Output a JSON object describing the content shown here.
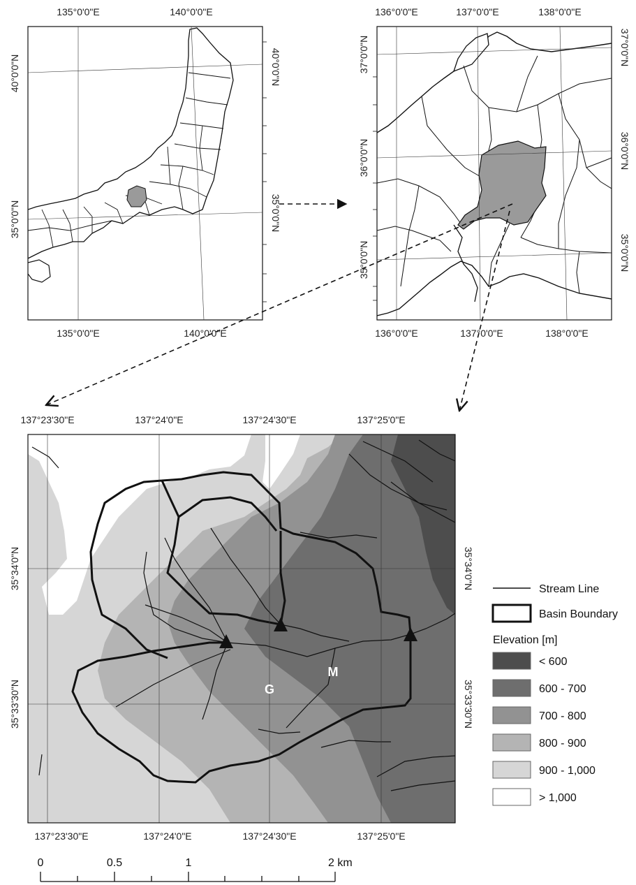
{
  "map_overview": {
    "top_labels": [
      "135°0'0\"E",
      "140°0'0\"E"
    ],
    "bottom_labels": [
      "135°0'0\"E",
      "140°0'0\"E"
    ],
    "left_labels": [
      "40°0'0\"N",
      "35°0'0\"N"
    ],
    "right_labels": [
      "40°0'0\"N",
      "35°0'0\"N"
    ]
  },
  "map_region": {
    "top_labels": [
      "136°0'0\"E",
      "137°0'0\"E",
      "138°0'0\"E"
    ],
    "bottom_labels": [
      "136°0'0\"E",
      "137°0'0\"E",
      "138°0'0\"E"
    ],
    "left_labels": [
      "37°0'0\"N",
      "36°0'0\"N",
      "35°0'0\"N"
    ],
    "right_labels": [
      "37°0'0\"N",
      "36°0'0\"N",
      "35°0'0\"N"
    ]
  },
  "map_detail": {
    "top_labels": [
      "137°23'30\"E",
      "137°24'0\"E",
      "137°24'30\"E",
      "137°25'0\"E"
    ],
    "bottom_labels": [
      "137°23'30\"E",
      "137°24'0\"E",
      "137°24'30\"E",
      "137°25'0\"E"
    ],
    "left_labels": [
      "35°34'0\"N",
      "35°33'30\"N"
    ],
    "right_labels": [
      "35°34'0\"N",
      "35°33'30\"N"
    ],
    "site_labels": [
      "G",
      "M"
    ]
  },
  "legend": {
    "stream_line": "Stream Line",
    "basin_boundary": "Basin Boundary",
    "elevation_title": "Elevation [m]",
    "classes": [
      {
        "label": "< 600",
        "color": "#4d4d4d"
      },
      {
        "label": "600 - 700",
        "color": "#6e6e6e"
      },
      {
        "label": "700 - 800",
        "color": "#929292"
      },
      {
        "label": "800 - 900",
        "color": "#b4b4b4"
      },
      {
        "label": "900 - 1,000",
        "color": "#d6d6d6"
      },
      {
        "label": "> 1,000",
        "color": "#ffffff"
      }
    ]
  },
  "scale_bar": {
    "labels": [
      "0",
      "0.5",
      "1",
      "2 km"
    ]
  }
}
